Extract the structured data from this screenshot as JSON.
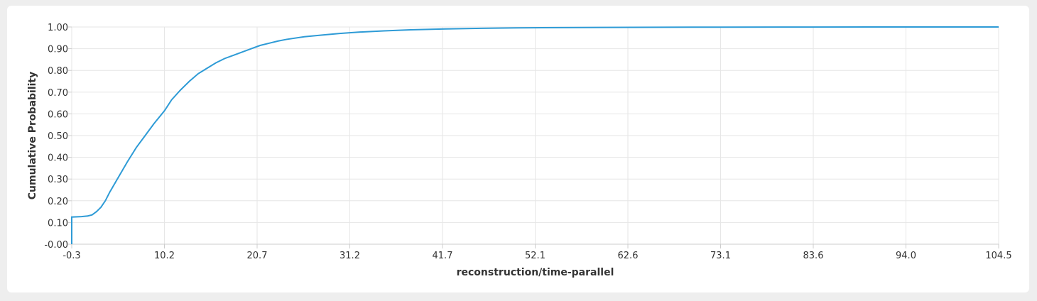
{
  "chart_data": {
    "type": "line",
    "title": "",
    "xlabel": "reconstruction/time-parallel",
    "ylabel": "Cumulative Probability",
    "xlim": [
      -0.3,
      104.5
    ],
    "ylim": [
      0.0,
      1.0
    ],
    "x_ticks": [
      "-0.3",
      "10.2",
      "20.7",
      "31.2",
      "41.7",
      "52.1",
      "62.6",
      "73.1",
      "83.6",
      "94.0",
      "104.5"
    ],
    "y_ticks": [
      "-0.00",
      "0.10",
      "0.20",
      "0.30",
      "0.40",
      "0.50",
      "0.60",
      "0.70",
      "0.80",
      "0.90",
      "1.00"
    ],
    "grid": true,
    "color": "#2e9bd6",
    "series": [
      {
        "x": [
          -0.3,
          -0.3,
          0.8,
          1.5,
          2.0,
          2.5,
          3.0,
          3.5,
          4.0,
          5.0,
          6.0,
          7.0,
          8.0,
          9.0,
          10.2,
          11.0,
          12.0,
          13.0,
          14.0,
          15.0,
          16.0,
          17.0,
          18.0,
          19.0,
          20.0,
          21.0,
          22.0,
          23.0,
          24.0,
          26.0,
          28.0,
          30.0,
          32.0,
          35.0,
          38.0,
          42.0,
          46.0,
          50.0,
          55.0,
          60.0,
          70.0,
          80.0,
          90.0,
          104.5
        ],
        "y": [
          0.0,
          0.125,
          0.127,
          0.13,
          0.135,
          0.15,
          0.17,
          0.2,
          0.24,
          0.31,
          0.38,
          0.445,
          0.5,
          0.555,
          0.615,
          0.665,
          0.71,
          0.75,
          0.785,
          0.81,
          0.835,
          0.855,
          0.87,
          0.885,
          0.9,
          0.915,
          0.925,
          0.935,
          0.943,
          0.955,
          0.963,
          0.97,
          0.976,
          0.982,
          0.987,
          0.991,
          0.994,
          0.996,
          0.997,
          0.998,
          0.999,
          0.9995,
          1.0,
          1.0
        ]
      }
    ]
  }
}
